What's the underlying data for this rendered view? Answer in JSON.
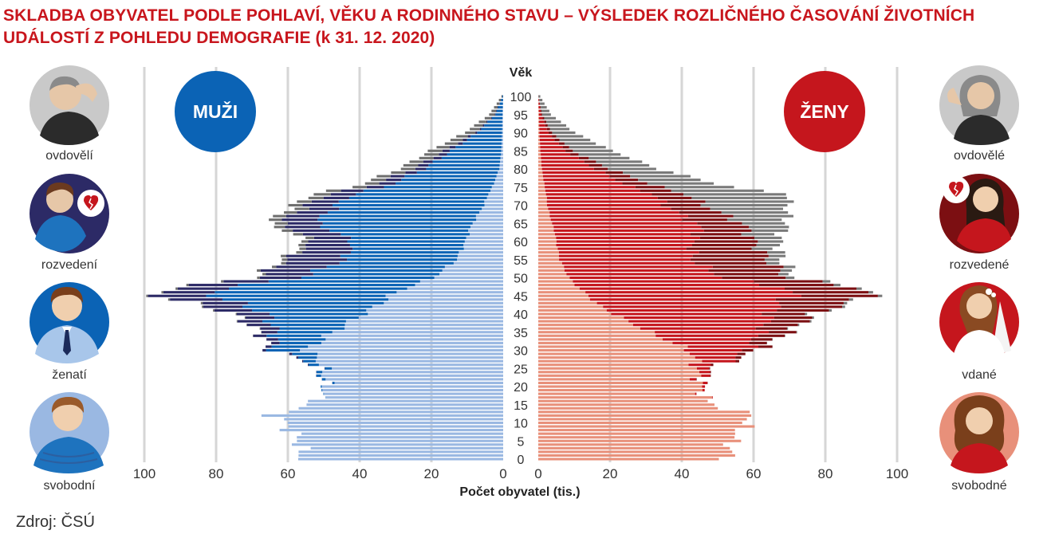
{
  "title_line1": "SKLADBA OBYVATEL PODLE POHLAVÍ, VĚKU A RODINNÉHO STAVU – VÝSLEDEK ROZLIČNÉHO ČASOVÁNÍ ŽIVOTNÍCH",
  "title_line2": "UDÁLOSTÍ Z POHLEDU DEMOGRAFIE (k 31. 12. 2020)",
  "source": "Zdroj: ČSÚ",
  "colors": {
    "male": [
      "#9ab8e2",
      "#0b63b5",
      "#2c2a66",
      "#6f6f6f"
    ],
    "female": [
      "#e8907a",
      "#c5161d",
      "#7c0f12",
      "#7a7a7a"
    ],
    "male_badge": "#0b63b5",
    "female_badge": "#c5161d",
    "grid": "#d6d6d6"
  },
  "badges": {
    "male": "MUŽI",
    "female": "ŽENY"
  },
  "status_labels": {
    "male": [
      "svobodní",
      "ženatí",
      "rozvedení",
      "ovdovělí"
    ],
    "female": [
      "svobodné",
      "vdané",
      "rozvedené",
      "ovdovělé"
    ]
  },
  "icons": {
    "male": [
      "single-man-icon",
      "married-man-icon",
      "divorced-man-icon",
      "widowed-man-icon"
    ],
    "female": [
      "single-woman-icon",
      "bride-icon",
      "divorced-woman-icon",
      "widowed-woman-icon"
    ]
  },
  "chart_data": {
    "type": "bar",
    "orientation": "horizontal-pyramid",
    "title": "SKLADBA OBYVATEL PODLE POHLAVÍ, VĚKU A RODINNÉHO STAVU – VÝSLEDEK ROZLIČNÉHO ČASOVÁNÍ ŽIVOTNÍCH UDÁLOSTÍ Z POHLEDU DEMOGRAFIE (k 31. 12. 2020)",
    "xlabel": "Počet obyvatel (tis.)",
    "ylabel": "Věk",
    "xlim": [
      0,
      100
    ],
    "x_ticks": [
      100,
      80,
      60,
      40,
      20,
      0
    ],
    "age_range": [
      0,
      100
    ],
    "age_ticks": [
      0,
      5,
      10,
      15,
      20,
      25,
      30,
      35,
      40,
      45,
      50,
      55,
      60,
      65,
      70,
      75,
      80,
      85,
      90,
      95,
      100
    ],
    "grid": true,
    "series_order": [
      "single",
      "married",
      "divorced",
      "widowed"
    ],
    "anchors": {
      "male": {
        "ages": [
          0,
          5,
          10,
          12,
          14,
          16,
          20,
          25,
          27,
          30,
          35,
          40,
          43,
          45,
          47,
          50,
          55,
          60,
          63,
          65,
          70,
          73,
          75,
          80,
          85,
          90,
          95,
          100
        ],
        "single": [
          56,
          57,
          61,
          64,
          58,
          52,
          49,
          50,
          51,
          55,
          47.4,
          39,
          34,
          31.6,
          27.5,
          19.5,
          13,
          10.5,
          9.5,
          8.5,
          5.4,
          4.2,
          3,
          1.1,
          0.5,
          0.3,
          0.2,
          0
        ],
        "married": [
          0,
          0,
          0,
          0,
          0,
          0,
          0.3,
          2,
          3.5,
          9,
          16,
          27,
          40,
          49.5,
          52,
          37.5,
          31,
          31.5,
          38,
          44,
          41,
          38,
          30,
          21,
          14,
          7,
          2,
          0.2
        ],
        "divorced": [
          0,
          0,
          0,
          0,
          0,
          0,
          0,
          0.1,
          0.3,
          1,
          4.5,
          9,
          12.6,
          16,
          14,
          12,
          16,
          11,
          10,
          10,
          8,
          7,
          5,
          3,
          2,
          0.5,
          0.2,
          0
        ],
        "widowed": [
          0,
          0,
          0,
          0,
          0,
          0,
          0,
          0,
          0,
          0,
          0.1,
          0.3,
          0.5,
          0.5,
          0.6,
          0.8,
          1.5,
          2,
          3,
          3.5,
          4,
          4.5,
          4,
          4,
          4,
          3,
          1.5,
          0.3
        ]
      },
      "female": {
        "ages": [
          0,
          5,
          10,
          12,
          14,
          16,
          20,
          25,
          27,
          30,
          35,
          40,
          43,
          45,
          47,
          50,
          55,
          60,
          63,
          65,
          70,
          73,
          75,
          80,
          85,
          90,
          95,
          100
        ],
        "single": [
          53,
          54,
          58,
          60,
          52,
          47,
          45,
          44,
          44,
          42,
          31,
          21,
          16,
          14,
          11.5,
          8.5,
          6,
          5,
          4.5,
          3.8,
          2.5,
          2.2,
          1.8,
          1,
          0.6,
          0.3,
          0.2,
          0
        ],
        "married": [
          0,
          0,
          0,
          0,
          0,
          0,
          0.8,
          3.5,
          9,
          16,
          31,
          44,
          51,
          57,
          58,
          43,
          37,
          38,
          41,
          40,
          33,
          30,
          24,
          15,
          7,
          2.5,
          0.6,
          0.05
        ],
        "divorced": [
          0,
          0,
          0,
          0,
          0,
          0,
          0,
          0.3,
          1,
          3,
          8,
          12,
          19,
          21,
          21,
          18,
          21,
          17,
          13,
          13,
          11,
          9,
          8,
          4,
          2,
          1,
          0.3,
          0
        ],
        "widowed": [
          0,
          0,
          0,
          0,
          0,
          0,
          0,
          0,
          0,
          0,
          0.2,
          0.6,
          1,
          1.2,
          1.5,
          2.5,
          4,
          7,
          10,
          12.5,
          23,
          29,
          20,
          13.5,
          11,
          6.5,
          2.5,
          0.5
        ]
      }
    }
  }
}
